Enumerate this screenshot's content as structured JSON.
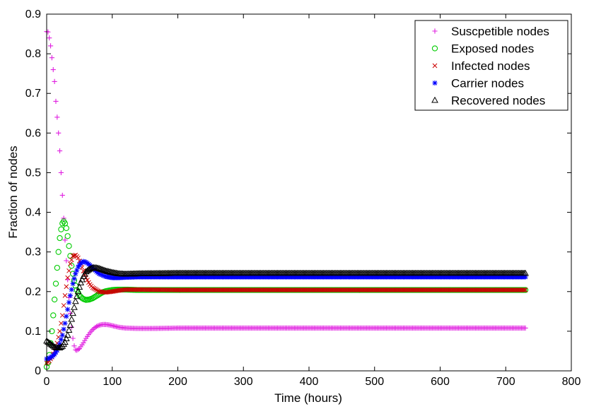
{
  "chart_data": {
    "type": "scatter",
    "title": "",
    "xlabel": "Time (hours)",
    "ylabel": "Fraction of nodes",
    "xlim": [
      0,
      800
    ],
    "ylim": [
      0,
      0.9
    ],
    "xticks": [
      "0",
      "100",
      "200",
      "300",
      "400",
      "500",
      "600",
      "700",
      "800"
    ],
    "yticks": [
      "0",
      "0.1",
      "0.2",
      "0.3",
      "0.4",
      "0.5",
      "0.6",
      "0.7",
      "0.8",
      "0.9"
    ],
    "grid": false,
    "legend_position": "top-right",
    "series": [
      {
        "name": "Suscpetible nodes",
        "marker": "plus",
        "color": "#e020e0",
        "points": [
          [
            0,
            0.856
          ],
          [
            2,
            0.855
          ],
          [
            4,
            0.84
          ],
          [
            6,
            0.82
          ],
          [
            8,
            0.79
          ],
          [
            10,
            0.76
          ],
          [
            12,
            0.73
          ],
          [
            14,
            0.68
          ],
          [
            16,
            0.64
          ],
          [
            18,
            0.6
          ],
          [
            20,
            0.555
          ],
          [
            22,
            0.5
          ],
          [
            24,
            0.443
          ],
          [
            26,
            0.385
          ],
          [
            28,
            0.33
          ],
          [
            30,
            0.278
          ],
          [
            32,
            0.23
          ],
          [
            34,
            0.185
          ],
          [
            36,
            0.145
          ],
          [
            38,
            0.11
          ],
          [
            40,
            0.082
          ],
          [
            42,
            0.063
          ],
          [
            44,
            0.053
          ],
          [
            46,
            0.052
          ],
          [
            50,
            0.056
          ],
          [
            55,
            0.068
          ],
          [
            60,
            0.082
          ],
          [
            65,
            0.094
          ],
          [
            70,
            0.104
          ],
          [
            75,
            0.111
          ],
          [
            80,
            0.115
          ],
          [
            85,
            0.117
          ],
          [
            90,
            0.117
          ],
          [
            95,
            0.116
          ],
          [
            100,
            0.114
          ],
          [
            110,
            0.11
          ],
          [
            120,
            0.108
          ],
          [
            140,
            0.107
          ],
          [
            160,
            0.107
          ],
          [
            200,
            0.108
          ],
          [
            300,
            0.108
          ],
          [
            400,
            0.108
          ],
          [
            500,
            0.108
          ],
          [
            600,
            0.108
          ],
          [
            700,
            0.108
          ],
          [
            730,
            0.108
          ]
        ]
      },
      {
        "name": "Exposed nodes",
        "marker": "circle",
        "color": "#00cc00",
        "points": [
          [
            0,
            0.01
          ],
          [
            2,
            0.02
          ],
          [
            4,
            0.04
          ],
          [
            6,
            0.07
          ],
          [
            8,
            0.1
          ],
          [
            10,
            0.14
          ],
          [
            12,
            0.18
          ],
          [
            14,
            0.22
          ],
          [
            16,
            0.26
          ],
          [
            18,
            0.3
          ],
          [
            20,
            0.335
          ],
          [
            22,
            0.357
          ],
          [
            24,
            0.372
          ],
          [
            26,
            0.377
          ],
          [
            28,
            0.372
          ],
          [
            30,
            0.36
          ],
          [
            32,
            0.34
          ],
          [
            34,
            0.315
          ],
          [
            36,
            0.29
          ],
          [
            38,
            0.265
          ],
          [
            40,
            0.245
          ],
          [
            42,
            0.228
          ],
          [
            44,
            0.215
          ],
          [
            46,
            0.204
          ],
          [
            50,
            0.19
          ],
          [
            55,
            0.182
          ],
          [
            60,
            0.179
          ],
          [
            65,
            0.18
          ],
          [
            70,
            0.183
          ],
          [
            75,
            0.188
          ],
          [
            80,
            0.193
          ],
          [
            85,
            0.198
          ],
          [
            90,
            0.201
          ],
          [
            100,
            0.204
          ],
          [
            110,
            0.205
          ],
          [
            120,
            0.205
          ],
          [
            140,
            0.204
          ],
          [
            200,
            0.204
          ],
          [
            300,
            0.204
          ],
          [
            400,
            0.204
          ],
          [
            500,
            0.204
          ],
          [
            600,
            0.204
          ],
          [
            700,
            0.204
          ],
          [
            730,
            0.204
          ]
        ]
      },
      {
        "name": "Infected nodes",
        "marker": "x",
        "color": "#cc0000",
        "points": [
          [
            0,
            0.02
          ],
          [
            4,
            0.025
          ],
          [
            8,
            0.035
          ],
          [
            12,
            0.05
          ],
          [
            16,
            0.07
          ],
          [
            20,
            0.1
          ],
          [
            24,
            0.14
          ],
          [
            28,
            0.19
          ],
          [
            32,
            0.235
          ],
          [
            36,
            0.27
          ],
          [
            40,
            0.29
          ],
          [
            44,
            0.292
          ],
          [
            48,
            0.285
          ],
          [
            52,
            0.27
          ],
          [
            56,
            0.252
          ],
          [
            60,
            0.235
          ],
          [
            65,
            0.22
          ],
          [
            70,
            0.21
          ],
          [
            75,
            0.205
          ],
          [
            80,
            0.2
          ],
          [
            90,
            0.198
          ],
          [
            100,
            0.2
          ],
          [
            110,
            0.203
          ],
          [
            120,
            0.205
          ],
          [
            140,
            0.205
          ],
          [
            200,
            0.204
          ],
          [
            300,
            0.204
          ],
          [
            400,
            0.204
          ],
          [
            500,
            0.204
          ],
          [
            600,
            0.204
          ],
          [
            700,
            0.204
          ],
          [
            730,
            0.204
          ]
        ]
      },
      {
        "name": "Carrier nodes",
        "marker": "star",
        "color": "#0000ff",
        "points": [
          [
            0,
            0.03
          ],
          [
            4,
            0.032
          ],
          [
            8,
            0.036
          ],
          [
            12,
            0.042
          ],
          [
            16,
            0.052
          ],
          [
            20,
            0.068
          ],
          [
            24,
            0.09
          ],
          [
            28,
            0.12
          ],
          [
            32,
            0.155
          ],
          [
            36,
            0.19
          ],
          [
            40,
            0.22
          ],
          [
            44,
            0.245
          ],
          [
            48,
            0.262
          ],
          [
            52,
            0.272
          ],
          [
            56,
            0.276
          ],
          [
            60,
            0.274
          ],
          [
            65,
            0.268
          ],
          [
            70,
            0.26
          ],
          [
            75,
            0.252
          ],
          [
            80,
            0.245
          ],
          [
            90,
            0.238
          ],
          [
            100,
            0.235
          ],
          [
            110,
            0.235
          ],
          [
            120,
            0.236
          ],
          [
            140,
            0.237
          ],
          [
            200,
            0.237
          ],
          [
            300,
            0.237
          ],
          [
            400,
            0.237
          ],
          [
            500,
            0.237
          ],
          [
            600,
            0.237
          ],
          [
            700,
            0.237
          ],
          [
            730,
            0.237
          ]
        ]
      },
      {
        "name": "Recovered nodes",
        "marker": "triangle",
        "color": "#000000",
        "points": [
          [
            0,
            0.075
          ],
          [
            4,
            0.07
          ],
          [
            8,
            0.065
          ],
          [
            12,
            0.06
          ],
          [
            16,
            0.058
          ],
          [
            20,
            0.058
          ],
          [
            24,
            0.062
          ],
          [
            28,
            0.072
          ],
          [
            32,
            0.09
          ],
          [
            36,
            0.115
          ],
          [
            40,
            0.145
          ],
          [
            44,
            0.175
          ],
          [
            48,
            0.2
          ],
          [
            52,
            0.222
          ],
          [
            56,
            0.238
          ],
          [
            60,
            0.25
          ],
          [
            65,
            0.256
          ],
          [
            70,
            0.26
          ],
          [
            75,
            0.26
          ],
          [
            80,
            0.258
          ],
          [
            85,
            0.255
          ],
          [
            90,
            0.252
          ],
          [
            100,
            0.248
          ],
          [
            110,
            0.245
          ],
          [
            120,
            0.244
          ],
          [
            140,
            0.245
          ],
          [
            200,
            0.246
          ],
          [
            300,
            0.246
          ],
          [
            400,
            0.246
          ],
          [
            500,
            0.246
          ],
          [
            600,
            0.246
          ],
          [
            700,
            0.246
          ],
          [
            730,
            0.246
          ]
        ]
      }
    ]
  }
}
